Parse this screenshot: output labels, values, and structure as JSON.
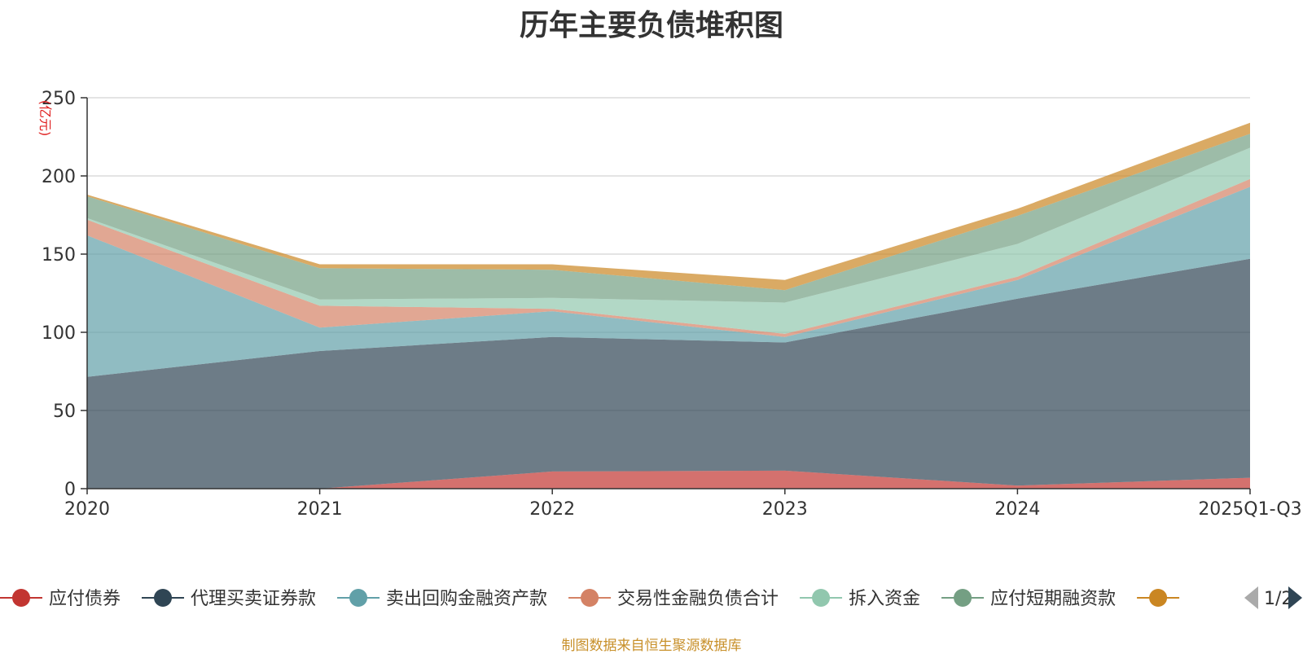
{
  "chart_data": {
    "type": "area",
    "stacked": true,
    "title": "历年主要负债堆积图",
    "unit_label": "(亿元)",
    "categories": [
      "2020",
      "2021",
      "2022",
      "2023",
      "2024",
      "2025Q1-Q3"
    ],
    "ylim": [
      0,
      250
    ],
    "yticks": [
      0,
      50,
      100,
      150,
      200,
      250
    ],
    "grid": true,
    "series": [
      {
        "name": "应付债券",
        "color": "#c23531",
        "values": [
          0,
          0,
          11,
          11.5,
          2,
          7
        ]
      },
      {
        "name": "代理买卖证券款",
        "color": "#2f4554",
        "values": [
          71.5,
          88,
          86,
          82,
          119.5,
          140
        ]
      },
      {
        "name": "卖出回购金融资产款",
        "color": "#61a0a8",
        "values": [
          90.5,
          15,
          16.5,
          3.5,
          12,
          46
        ]
      },
      {
        "name": "交易性金融负债合计",
        "color": "#d48265",
        "values": [
          10,
          14,
          1.5,
          2,
          2,
          5
        ]
      },
      {
        "name": "拆入资金",
        "color": "#91c7ae",
        "values": [
          1,
          4,
          7,
          20,
          21,
          20
        ]
      },
      {
        "name": "应付短期融资款",
        "color": "#749f83",
        "values": [
          14,
          20,
          18,
          8,
          18,
          9
        ]
      },
      {
        "name": "",
        "color": "#ca8622",
        "values": [
          1,
          2.5,
          3.5,
          6.5,
          4.5,
          7
        ]
      }
    ],
    "legend": {
      "position": "bottom",
      "page": "1/2",
      "visible_count": 7
    }
  },
  "footer": {
    "source": "制图数据来自恒生聚源数据库"
  }
}
